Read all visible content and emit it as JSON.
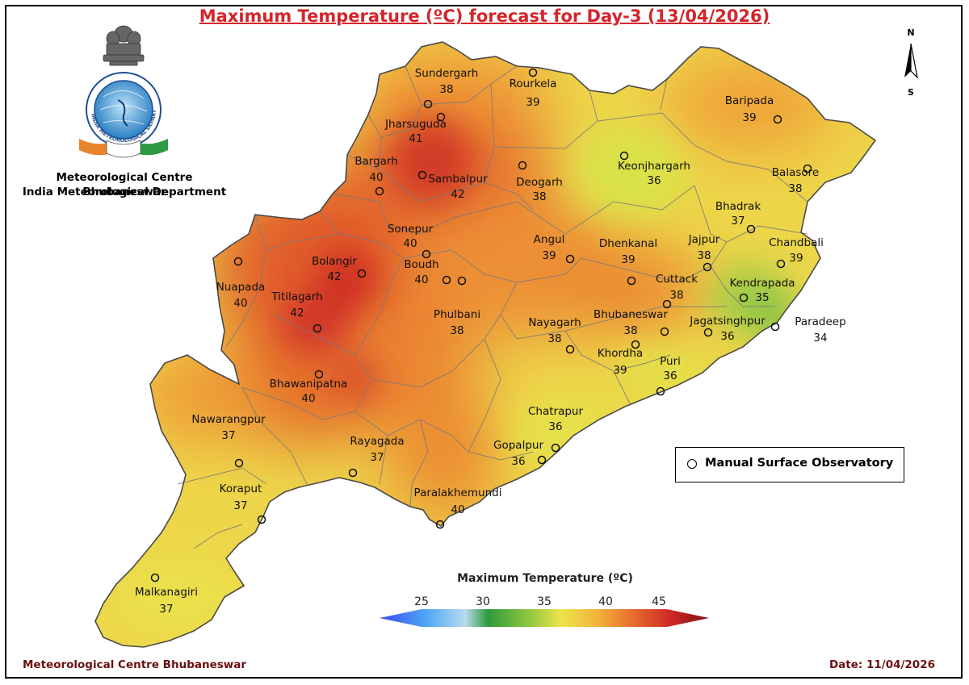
{
  "title": "Maximum Temperature (ºC) forecast for Day-3 (13/04/2026)",
  "org": {
    "line1": "Meteorological Centre Bhubaneswar",
    "line2": "India Meteorological Department",
    "logo_text": "INDIA METEOROLOGICAL DEPARTMENT"
  },
  "compass": {
    "north": "N",
    "south": "S"
  },
  "legend": {
    "marker_label": "Manual Surface Observatory"
  },
  "colorbar": {
    "title": "Maximum Temperature (ºC)",
    "ticks": [
      "25",
      "30",
      "35",
      "40",
      "45"
    ],
    "colors": [
      "#3b49f0",
      "#4da6f5",
      "#b8dbee",
      "#2e9a3a",
      "#8cc63f",
      "#ece44a",
      "#f2b43c",
      "#e9722d",
      "#cf2b26",
      "#7d1212"
    ]
  },
  "footer": {
    "left": "Meteorological Centre Bhubaneswar",
    "right": "Date: 11/04/2026"
  },
  "stations": [
    {
      "name": "Sundergarh",
      "value": "38"
    },
    {
      "name": "Rourkela",
      "value": "39"
    },
    {
      "name": "Jharsuguda",
      "value": "41"
    },
    {
      "name": "Baripada",
      "value": "39"
    },
    {
      "name": "Bargarh",
      "value": "40"
    },
    {
      "name": "Sambalpur",
      "value": "42"
    },
    {
      "name": "Deogarh",
      "value": "38"
    },
    {
      "name": "Keonjhargarh",
      "value": "36"
    },
    {
      "name": "Balasore",
      "value": "38"
    },
    {
      "name": "Bhadrak",
      "value": "37"
    },
    {
      "name": "Sonepur",
      "value": "40"
    },
    {
      "name": "Chandbali",
      "value": "39"
    },
    {
      "name": "Bolangir",
      "value": "42"
    },
    {
      "name": "Angul",
      "value": "39"
    },
    {
      "name": "Dhenkanal",
      "value": "39"
    },
    {
      "name": "Jajpur",
      "value": "38"
    },
    {
      "name": "Nuapada",
      "value": "40"
    },
    {
      "name": "Boudh",
      "value": "40"
    },
    {
      "name": "Cuttack",
      "value": "38"
    },
    {
      "name": "Kendrapada",
      "value": "35"
    },
    {
      "name": "Titilagarh",
      "value": "42"
    },
    {
      "name": "Phulbani",
      "value": "38"
    },
    {
      "name": "Nayagarh",
      "value": "38"
    },
    {
      "name": "Bhubaneswar",
      "value": "38"
    },
    {
      "name": "Jagatsinghpur",
      "value": "36"
    },
    {
      "name": "Paradeep",
      "value": "34"
    },
    {
      "name": "Khordha",
      "value": "39"
    },
    {
      "name": "Puri",
      "value": "36"
    },
    {
      "name": "Bhawanipatna",
      "value": "40"
    },
    {
      "name": "Chatrapur",
      "value": "36"
    },
    {
      "name": "Nawarangpur",
      "value": "37"
    },
    {
      "name": "Rayagada",
      "value": "37"
    },
    {
      "name": "Gopalpur",
      "value": "36"
    },
    {
      "name": "Koraput",
      "value": "37"
    },
    {
      "name": "Paralakhemundi",
      "value": "40"
    },
    {
      "name": "Malkanagiri",
      "value": "37"
    }
  ]
}
